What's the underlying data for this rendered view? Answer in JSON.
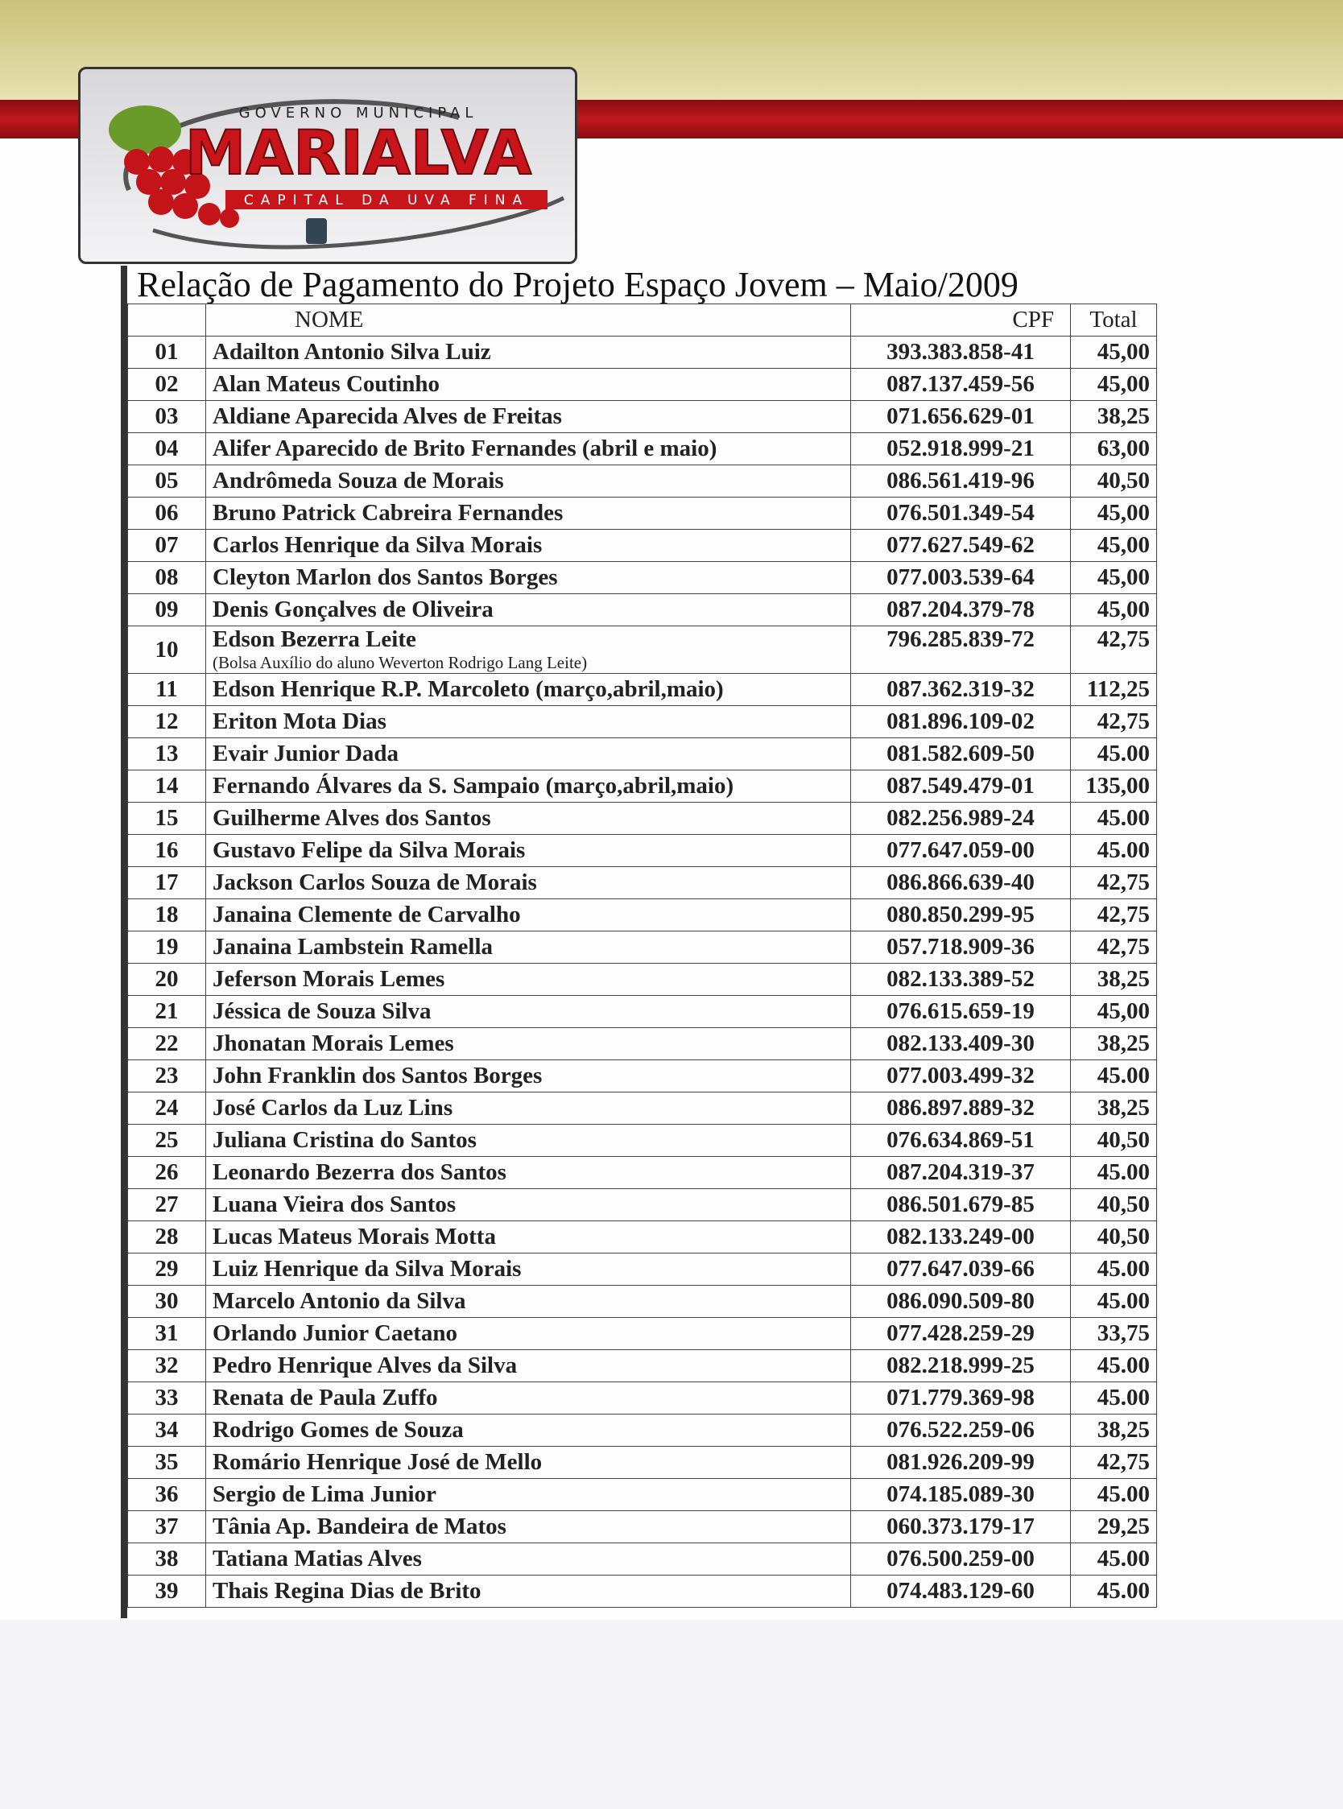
{
  "logo": {
    "top": "GOVERNO MUNICIPAL",
    "name": "MARIALVA",
    "tagline": "CAPITAL DA UVA FINA"
  },
  "title": "Relação de Pagamento do Projeto Espaço Jovem – Maio/2009",
  "table": {
    "header": [
      "NOME",
      "CPF",
      "Total"
    ],
    "rows": [
      {
        "num": "01",
        "name": "Adailton Antonio Silva Luiz",
        "cpf": "393.383.858-41",
        "total": "45,00"
      },
      {
        "num": "02",
        "name": "Alan Mateus Coutinho",
        "cpf": "087.137.459-56",
        "total": "45,00"
      },
      {
        "num": "03",
        "name": "Aldiane Aparecida Alves de Freitas",
        "cpf": "071.656.629-01",
        "total": "38,25"
      },
      {
        "num": "04",
        "name": "Alifer Aparecido de Brito Fernandes (abril e maio)",
        "cpf": "052.918.999-21",
        "total": "63,00"
      },
      {
        "num": "05",
        "name": "Andrômeda Souza de Morais",
        "cpf": "086.561.419-96",
        "total": "40,50"
      },
      {
        "num": "06",
        "name": "Bruno Patrick Cabreira Fernandes",
        "cpf": "076.501.349-54",
        "total": "45,00"
      },
      {
        "num": "07",
        "name": "Carlos Henrique da Silva Morais",
        "cpf": "077.627.549-62",
        "total": "45,00"
      },
      {
        "num": "08",
        "name": "Cleyton Marlon dos Santos Borges",
        "cpf": "077.003.539-64",
        "total": "45,00"
      },
      {
        "num": "09",
        "name": "Denis Gonçalves de Oliveira",
        "cpf": "087.204.379-78",
        "total": "45,00"
      },
      {
        "num": "10",
        "name": "Edson Bezerra Leite",
        "note": "(Bolsa Auxílio do aluno  Weverton Rodrigo Lang Leite)",
        "cpf": "796.285.839-72",
        "total": "42,75"
      },
      {
        "num": "11",
        "name": "Edson Henrique R.P. Marcoleto (março,abril,maio)",
        "cpf": "087.362.319-32",
        "total": "112,25"
      },
      {
        "num": "12",
        "name": "Eriton Mota Dias",
        "cpf": "081.896.109-02",
        "total": "42,75"
      },
      {
        "num": "13",
        "name": "Evair Junior Dada",
        "cpf": "081.582.609-50",
        "total": "45.00"
      },
      {
        "num": "14",
        "name": "Fernando Álvares da S. Sampaio (março,abril,maio)",
        "cpf": "087.549.479-01",
        "total": "135,00"
      },
      {
        "num": "15",
        "name": "Guilherme Alves dos Santos",
        "cpf": "082.256.989-24",
        "total": "45.00"
      },
      {
        "num": "16",
        "name": "Gustavo Felipe da Silva Morais",
        "cpf": "077.647.059-00",
        "total": "45.00"
      },
      {
        "num": "17",
        "name": "Jackson Carlos Souza de Morais",
        "cpf": "086.866.639-40",
        "total": "42,75"
      },
      {
        "num": "18",
        "name": "Janaina Clemente de Carvalho",
        "cpf": "080.850.299-95",
        "total": "42,75"
      },
      {
        "num": "19",
        "name": "Janaina Lambstein Ramella",
        "cpf": "057.718.909-36",
        "total": "42,75"
      },
      {
        "num": "20",
        "name": "Jeferson Morais Lemes",
        "cpf": "082.133.389-52",
        "total": "38,25"
      },
      {
        "num": "21",
        "name": "Jéssica de Souza Silva",
        "cpf": "076.615.659-19",
        "total": "45,00"
      },
      {
        "num": "22",
        "name": "Jhonatan Morais Lemes",
        "cpf": "082.133.409-30",
        "total": "38,25"
      },
      {
        "num": "23",
        "name": "John Franklin dos Santos Borges",
        "cpf": "077.003.499-32",
        "total": "45.00"
      },
      {
        "num": "24",
        "name": "José Carlos da Luz Lins",
        "cpf": "086.897.889-32",
        "total": "38,25"
      },
      {
        "num": "25",
        "name": "Juliana Cristina do Santos",
        "cpf": "076.634.869-51",
        "total": "40,50"
      },
      {
        "num": "26",
        "name": "Leonardo Bezerra dos Santos",
        "cpf": "087.204.319-37",
        "total": "45.00"
      },
      {
        "num": "27",
        "name": "Luana Vieira dos Santos",
        "cpf": "086.501.679-85",
        "total": "40,50"
      },
      {
        "num": "28",
        "name": "Lucas Mateus Morais Motta",
        "cpf": "082.133.249-00",
        "total": "40,50"
      },
      {
        "num": "29",
        "name": "Luiz Henrique da Silva Morais",
        "cpf": "077.647.039-66",
        "total": "45.00"
      },
      {
        "num": "30",
        "name": "Marcelo Antonio da Silva",
        "cpf": "086.090.509-80",
        "total": "45.00"
      },
      {
        "num": "31",
        "name": "Orlando Junior Caetano",
        "cpf": "077.428.259-29",
        "total": "33,75"
      },
      {
        "num": "32",
        "name": "Pedro Henrique Alves da Silva",
        "cpf": "082.218.999-25",
        "total": "45.00"
      },
      {
        "num": "33",
        "name": "Renata de Paula Zuffo",
        "cpf": "071.779.369-98",
        "total": "45.00"
      },
      {
        "num": "34",
        "name": "Rodrigo Gomes de Souza",
        "cpf": "076.522.259-06",
        "total": "38,25"
      },
      {
        "num": "35",
        "name": "Romário Henrique José de Mello",
        "cpf": "081.926.209-99",
        "total": "42,75"
      },
      {
        "num": "36",
        "name": "Sergio de Lima Junior",
        "cpf": "074.185.089-30",
        "total": "45.00"
      },
      {
        "num": "37",
        "name": "Tânia Ap. Bandeira de Matos",
        "cpf": "060.373.179-17",
        "total": "29,25"
      },
      {
        "num": "38",
        "name": "Tatiana Matias Alves",
        "cpf": "076.500.259-00",
        "total": "45.00"
      },
      {
        "num": "39",
        "name": "Thais Regina Dias de Brito",
        "cpf": "074.483.129-60",
        "total": "45.00"
      }
    ]
  }
}
